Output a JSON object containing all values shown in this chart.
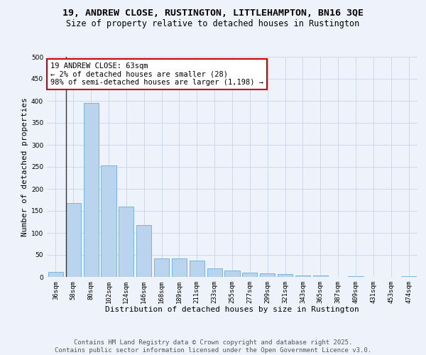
{
  "title_line1": "19, ANDREW CLOSE, RUSTINGTON, LITTLEHAMPTON, BN16 3QE",
  "title_line2": "Size of property relative to detached houses in Rustington",
  "xlabel": "Distribution of detached houses by size in Rustington",
  "ylabel": "Number of detached properties",
  "categories": [
    "36sqm",
    "58sqm",
    "80sqm",
    "102sqm",
    "124sqm",
    "146sqm",
    "168sqm",
    "189sqm",
    "211sqm",
    "233sqm",
    "255sqm",
    "277sqm",
    "299sqm",
    "321sqm",
    "343sqm",
    "365sqm",
    "387sqm",
    "409sqm",
    "431sqm",
    "453sqm",
    "474sqm"
  ],
  "values": [
    11,
    168,
    395,
    253,
    160,
    117,
    42,
    42,
    37,
    19,
    15,
    9,
    8,
    6,
    4,
    3,
    0,
    2,
    0,
    0,
    2
  ],
  "bar_color": "#bad4ed",
  "bar_edge_color": "#6aaed6",
  "annotation_box_text": "19 ANDREW CLOSE: 63sqm\n← 2% of detached houses are smaller (28)\n98% of semi-detached houses are larger (1,198) →",
  "annotation_box_color": "#ffffff",
  "annotation_box_edge_color": "#cc0000",
  "vline_color": "#333333",
  "grid_color": "#c8d4e8",
  "background_color": "#eef2fa",
  "footer_text": "Contains HM Land Registry data © Crown copyright and database right 2025.\nContains public sector information licensed under the Open Government Licence v3.0.",
  "ylim": [
    0,
    500
  ],
  "yticks": [
    0,
    50,
    100,
    150,
    200,
    250,
    300,
    350,
    400,
    450,
    500
  ],
  "title_fontsize": 9.5,
  "subtitle_fontsize": 8.5,
  "axis_label_fontsize": 8,
  "tick_fontsize": 6.5,
  "annotation_fontsize": 7.5,
  "footer_fontsize": 6.5
}
